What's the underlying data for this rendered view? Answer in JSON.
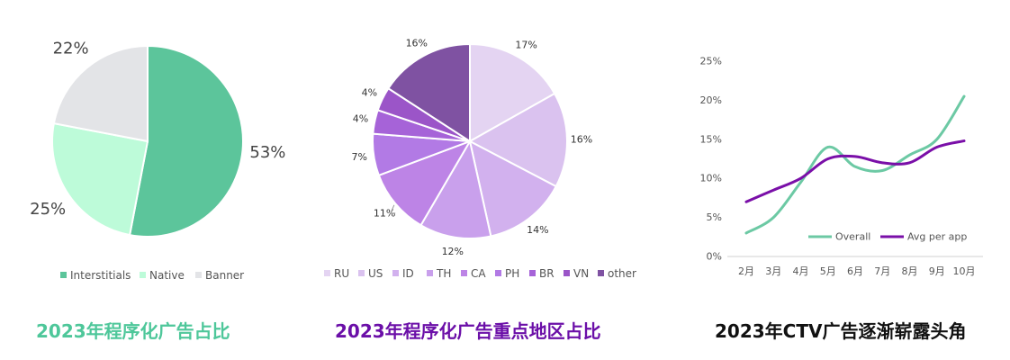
{
  "colors": {
    "pie1": [
      "#5cc59b",
      "#bdfbd9",
      "#e3e4e7"
    ],
    "pie2": [
      "#e4d4f2",
      "#dac2ef",
      "#d2b1ee",
      "#c9a0ec",
      "#bd84e6",
      "#b27ae5",
      "#a663d8",
      "#9b55c8",
      "#7f52a2"
    ],
    "line_overall": "#6cc9a4",
    "line_avg": "#7a0fa8"
  },
  "chart_data": [
    {
      "type": "pie",
      "categories": [
        "Interstitials",
        "Native",
        "Banner"
      ],
      "values": [
        53,
        25,
        22
      ],
      "labels": [
        "53%",
        "25%",
        "22%"
      ],
      "legend": "bottom",
      "title": "2023年程序化广告占比"
    },
    {
      "type": "pie",
      "categories": [
        "RU",
        "US",
        "ID",
        "TH",
        "CA",
        "PH",
        "BR",
        "VN",
        "other"
      ],
      "values": [
        17,
        16,
        14,
        12,
        11,
        7,
        4,
        4,
        16
      ],
      "labels": [
        "17%",
        "16%",
        "14%",
        "12%",
        "11%",
        "7%",
        "4%",
        "4%",
        "16%"
      ],
      "legend": "bottom",
      "title": "2023年程序化广告重点地区占比"
    },
    {
      "type": "line",
      "x": [
        "2月",
        "3月",
        "4月",
        "5月",
        "6月",
        "7月",
        "8月",
        "9月",
        "10月"
      ],
      "series": [
        {
          "name": "Overall",
          "values": [
            3,
            5,
            9.5,
            14,
            11.5,
            11,
            13,
            15,
            20.5
          ]
        },
        {
          "name": "Avg per app",
          "values": [
            7,
            8.5,
            10,
            12.5,
            12.8,
            12,
            12,
            14,
            14.8
          ]
        }
      ],
      "yticks": [
        "0%",
        "5%",
        "10%",
        "15%",
        "20%",
        "25%"
      ],
      "ylim": [
        0,
        25
      ],
      "grid": false,
      "legend": "bottom",
      "title": "2023年CTV广告逐渐崭露头角"
    }
  ]
}
